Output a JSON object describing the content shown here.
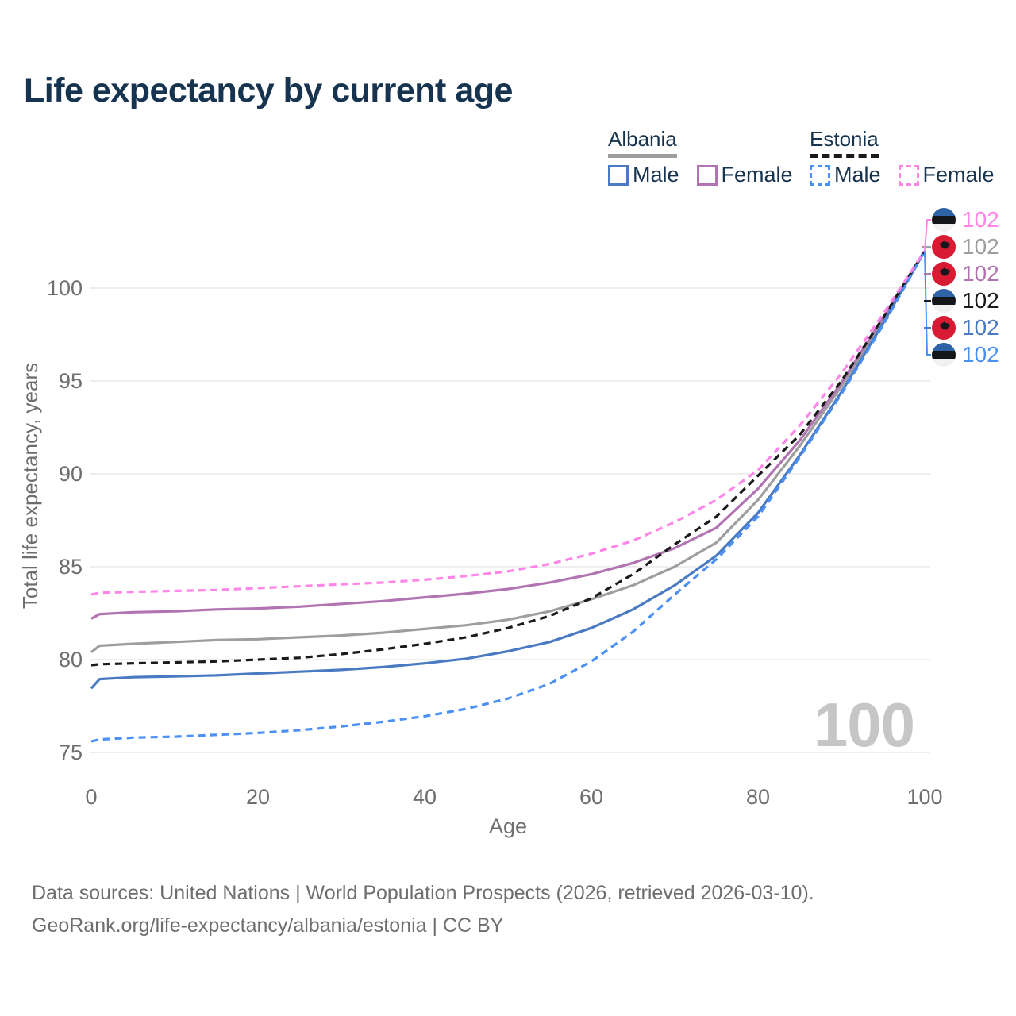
{
  "title": "Life expectancy by current age",
  "legend": {
    "groups": [
      {
        "country": "Albania",
        "line_style": "solid",
        "line_color": "#9e9e9e",
        "items": [
          {
            "label": "Male",
            "color": "#4a7ac2",
            "dashed": false
          },
          {
            "label": "Female",
            "color": "#b173b1",
            "dashed": false
          }
        ]
      },
      {
        "country": "Estonia",
        "line_style": "dashed",
        "line_color": "#1a1a1a",
        "items": [
          {
            "label": "Male",
            "color": "#4a90f5",
            "dashed": true
          },
          {
            "label": "Female",
            "color": "#ff85e8",
            "dashed": true
          }
        ]
      }
    ]
  },
  "chart_data": {
    "type": "line",
    "title": "Life expectancy by current age",
    "xlabel": "Age",
    "ylabel": "Total life expectancy, years",
    "xlim": [
      0,
      100
    ],
    "ylim": [
      73.5,
      103
    ],
    "xticks": [
      0,
      20,
      40,
      60,
      80,
      100
    ],
    "yticks": [
      75,
      80,
      85,
      90,
      95,
      100
    ],
    "grid": "horizontal",
    "legend_position": "top-right",
    "x": [
      0,
      1,
      5,
      10,
      15,
      20,
      25,
      30,
      35,
      40,
      45,
      50,
      55,
      60,
      65,
      70,
      75,
      80,
      85,
      90,
      95,
      100
    ],
    "series": [
      {
        "name": "Albania",
        "country": "Albania",
        "sex": "all",
        "color": "#9e9e9e",
        "dash": "solid",
        "values": [
          80.4,
          80.75,
          80.85,
          80.95,
          81.05,
          81.1,
          81.2,
          81.3,
          81.45,
          81.65,
          81.85,
          82.15,
          82.6,
          83.25,
          84.0,
          85.0,
          86.3,
          88.6,
          91.5,
          94.7,
          98.3,
          102
        ]
      },
      {
        "name": "Albania Female",
        "country": "Albania",
        "sex": "female",
        "color": "#b173b1",
        "dash": "solid",
        "values": [
          82.2,
          82.45,
          82.55,
          82.6,
          82.7,
          82.75,
          82.85,
          83.0,
          83.15,
          83.35,
          83.55,
          83.8,
          84.15,
          84.6,
          85.2,
          86.0,
          87.1,
          89.2,
          91.8,
          94.9,
          98.4,
          102
        ]
      },
      {
        "name": "Albania Male",
        "country": "Albania",
        "sex": "male",
        "color": "#4a7ac2",
        "dash": "solid",
        "values": [
          78.45,
          78.95,
          79.05,
          79.1,
          79.15,
          79.25,
          79.35,
          79.45,
          79.6,
          79.8,
          80.05,
          80.45,
          80.95,
          81.7,
          82.7,
          84.0,
          85.6,
          87.9,
          91.0,
          94.4,
          98.1,
          102
        ]
      },
      {
        "name": "Estonia",
        "country": "Estonia",
        "sex": "all",
        "color": "#1a1a1a",
        "dash": "dashed",
        "values": [
          79.7,
          79.75,
          79.8,
          79.85,
          79.9,
          80.0,
          80.1,
          80.3,
          80.55,
          80.85,
          81.2,
          81.7,
          82.35,
          83.3,
          84.6,
          86.2,
          87.7,
          89.9,
          92.1,
          95.0,
          98.4,
          102
        ]
      },
      {
        "name": "Estonia Male",
        "country": "Estonia",
        "sex": "male",
        "color": "#4a90f5",
        "dash": "dashed",
        "values": [
          75.6,
          75.7,
          75.8,
          75.85,
          75.95,
          76.05,
          76.2,
          76.4,
          76.65,
          76.95,
          77.35,
          77.9,
          78.7,
          79.9,
          81.5,
          83.5,
          85.4,
          87.7,
          90.9,
          94.3,
          98.0,
          102
        ]
      },
      {
        "name": "Estonia Female",
        "country": "Estonia",
        "sex": "female",
        "color": "#ff85e8",
        "dash": "dashed",
        "values": [
          83.5,
          83.6,
          83.65,
          83.7,
          83.75,
          83.85,
          83.95,
          84.05,
          84.15,
          84.3,
          84.5,
          84.75,
          85.15,
          85.7,
          86.4,
          87.4,
          88.6,
          90.2,
          92.6,
          95.4,
          98.6,
          102
        ]
      }
    ],
    "end_labels": [
      {
        "flag": "estonia",
        "series": "Estonia Female",
        "value": "102",
        "color": "#ff85e8"
      },
      {
        "flag": "albania",
        "series": "Albania",
        "value": "102",
        "color": "#9e9e9e"
      },
      {
        "flag": "albania",
        "series": "Albania Female",
        "value": "102",
        "color": "#b173b1"
      },
      {
        "flag": "estonia",
        "series": "Estonia",
        "value": "102",
        "color": "#1a1a1a"
      },
      {
        "flag": "albania",
        "series": "Albania Male",
        "value": "102",
        "color": "#4a7ac2"
      },
      {
        "flag": "estonia",
        "series": "Estonia Male",
        "value": "102",
        "color": "#4a90f5"
      }
    ]
  },
  "watermark": "100",
  "footer": {
    "line1": "Data sources: United Nations | World Population Prospects (2026, retrieved 2026-03-10).",
    "line2": "GeoRank.org/life-expectancy/albania/estonia | CC BY"
  }
}
